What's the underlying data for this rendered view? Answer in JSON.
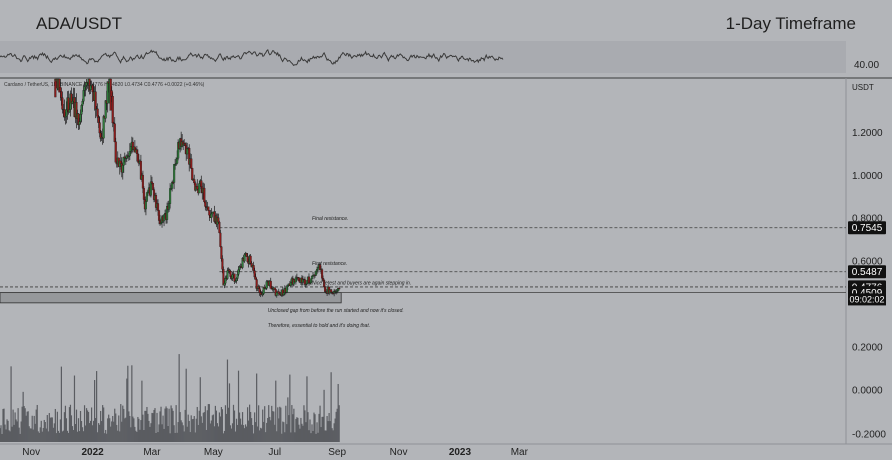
{
  "header": {
    "pair": "ADA/USDT",
    "timeframe": "1-Day Timeframe"
  },
  "info_line": "Cardano / TetherUS, 1D, BINANCE  O0.4776  H0.4820  L0.4734  C0.4776  +0.0022 (+0.46%)",
  "chart_data": [
    {
      "type": "candlestick",
      "title": "",
      "x_tick_labels": [
        "Nov",
        "2022",
        "Mar",
        "May",
        "Jul",
        "Sep",
        "Nov",
        "2023",
        "Mar"
      ],
      "y_unit_label": "USDT",
      "y_tick_labels": [
        "1.2000",
        "1.0000",
        "0.8000",
        "0.6000",
        "0.2000",
        "0.0000",
        "-0.2000"
      ],
      "ylim": [
        -0.25,
        1.38
      ],
      "grid": false,
      "price_path": [
        {
          "date": "2021-11-20",
          "price": 1.6
        },
        {
          "date": "2021-11-28",
          "price": 1.45
        },
        {
          "date": "2021-12-04",
          "price": 1.3
        },
        {
          "date": "2021-12-10",
          "price": 1.35
        },
        {
          "date": "2021-12-18",
          "price": 1.28
        },
        {
          "date": "2021-12-27",
          "price": 1.42
        },
        {
          "date": "2022-01-03",
          "price": 1.35
        },
        {
          "date": "2022-01-10",
          "price": 1.15
        },
        {
          "date": "2022-01-18",
          "price": 1.5
        },
        {
          "date": "2022-01-24",
          "price": 1.05
        },
        {
          "date": "2022-02-01",
          "price": 1.05
        },
        {
          "date": "2022-02-08",
          "price": 1.15
        },
        {
          "date": "2022-02-15",
          "price": 1.1
        },
        {
          "date": "2022-02-22",
          "price": 0.87
        },
        {
          "date": "2022-03-01",
          "price": 0.95
        },
        {
          "date": "2022-03-08",
          "price": 0.8
        },
        {
          "date": "2022-03-15",
          "price": 0.81
        },
        {
          "date": "2022-03-22",
          "price": 1.0
        },
        {
          "date": "2022-03-29",
          "price": 1.18
        },
        {
          "date": "2022-04-05",
          "price": 1.12
        },
        {
          "date": "2022-04-12",
          "price": 0.95
        },
        {
          "date": "2022-04-19",
          "price": 0.95
        },
        {
          "date": "2022-04-26",
          "price": 0.82
        },
        {
          "date": "2022-05-03",
          "price": 0.8
        },
        {
          "date": "2022-05-07",
          "price": 0.75
        },
        {
          "date": "2022-05-11",
          "price": 0.48
        },
        {
          "date": "2022-05-15",
          "price": 0.55
        },
        {
          "date": "2022-05-24",
          "price": 0.51
        },
        {
          "date": "2022-05-31",
          "price": 0.62
        },
        {
          "date": "2022-06-07",
          "price": 0.6
        },
        {
          "date": "2022-06-13",
          "price": 0.48
        },
        {
          "date": "2022-06-18",
          "price": 0.45
        },
        {
          "date": "2022-06-25",
          "price": 0.5
        },
        {
          "date": "2022-07-01",
          "price": 0.45
        },
        {
          "date": "2022-07-10",
          "price": 0.45
        },
        {
          "date": "2022-07-17",
          "price": 0.5
        },
        {
          "date": "2022-07-24",
          "price": 0.51
        },
        {
          "date": "2022-07-31",
          "price": 0.5
        },
        {
          "date": "2022-08-07",
          "price": 0.52
        },
        {
          "date": "2022-08-14",
          "price": 0.58
        },
        {
          "date": "2022-08-20",
          "price": 0.47
        },
        {
          "date": "2022-08-27",
          "price": 0.45
        },
        {
          "date": "2022-09-03",
          "price": 0.48
        }
      ],
      "price_levels": [
        {
          "value": 0.7545,
          "label": "0.7545",
          "style": "dashed"
        },
        {
          "value": 0.5487,
          "label": "0.5487",
          "style": "dashed"
        },
        {
          "value": 0.4776,
          "label": "0.4776",
          "style": "dashed"
        },
        {
          "value": 0.4509,
          "label": "0.4509",
          "style": "solid"
        }
      ],
      "countdown_label": "09:02:02",
      "gap_zone": {
        "top": 0.4509,
        "bottom": 0.403,
        "start": "2021-10-01",
        "end": "2022-09-05"
      },
      "annotations": [
        {
          "text": "Final resistance.",
          "date": "2022-08-07",
          "price": 0.79
        },
        {
          "text": "First resistance.",
          "date": "2022-08-07",
          "price": 0.58
        },
        {
          "text": "Nice retest and buyers are again stepping in.",
          "date": "2022-08-07",
          "price": 0.49
        },
        {
          "text": "Unclosed gap from before the run started and now it's closed.",
          "date": "2022-06-24",
          "price": 0.36
        },
        {
          "text": "Therefore, essential to hold and it's doing that.",
          "date": "2022-06-24",
          "price": 0.29
        }
      ],
      "volume": {
        "visible": true,
        "note": "volume histogram at bottom of chart, values not labelled"
      }
    },
    {
      "type": "line",
      "title": "",
      "y_tick_labels": [
        "40.00"
      ],
      "note": "oscillator pane above price chart (RSI style)",
      "series_color": "#3a3a3a"
    }
  ]
}
